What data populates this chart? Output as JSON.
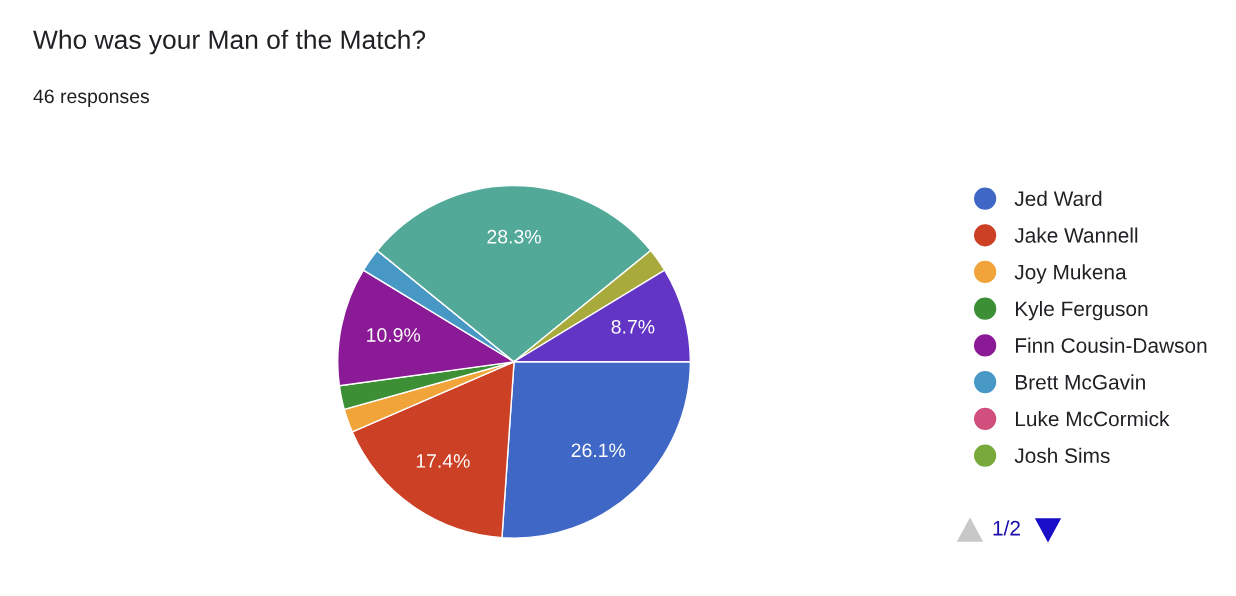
{
  "chart_data": {
    "type": "pie",
    "title": "Who was your Man of the Match?",
    "subtitle": "46 responses",
    "categories": [
      "Jed Ward",
      "Jake Wannell",
      "Joy Mukena",
      "Kyle Ferguson",
      "Finn Cousin-Dawson",
      "Brett McGavin",
      "Luke McCormick",
      "Josh Sims",
      null,
      null,
      null
    ],
    "values": [
      26.09,
      17.39,
      2.17,
      2.17,
      10.87,
      2.17,
      0,
      0,
      28.26,
      2.17,
      8.7
    ],
    "value_labels": [
      "26.1%",
      "17.4%",
      null,
      null,
      "10.9%",
      null,
      null,
      null,
      "28.3%",
      null,
      "8.7%"
    ],
    "colors": [
      "#3f67c6",
      "#cc4125",
      "#f1a43a",
      "#3c8f35",
      "#8b1a96",
      "#4898c6",
      "#d04f7c",
      "#79a83b",
      "#52a998",
      "#a8ab3b",
      "#6335c4"
    ],
    "legend": "right",
    "annotations": [
      "1/2"
    ]
  }
}
